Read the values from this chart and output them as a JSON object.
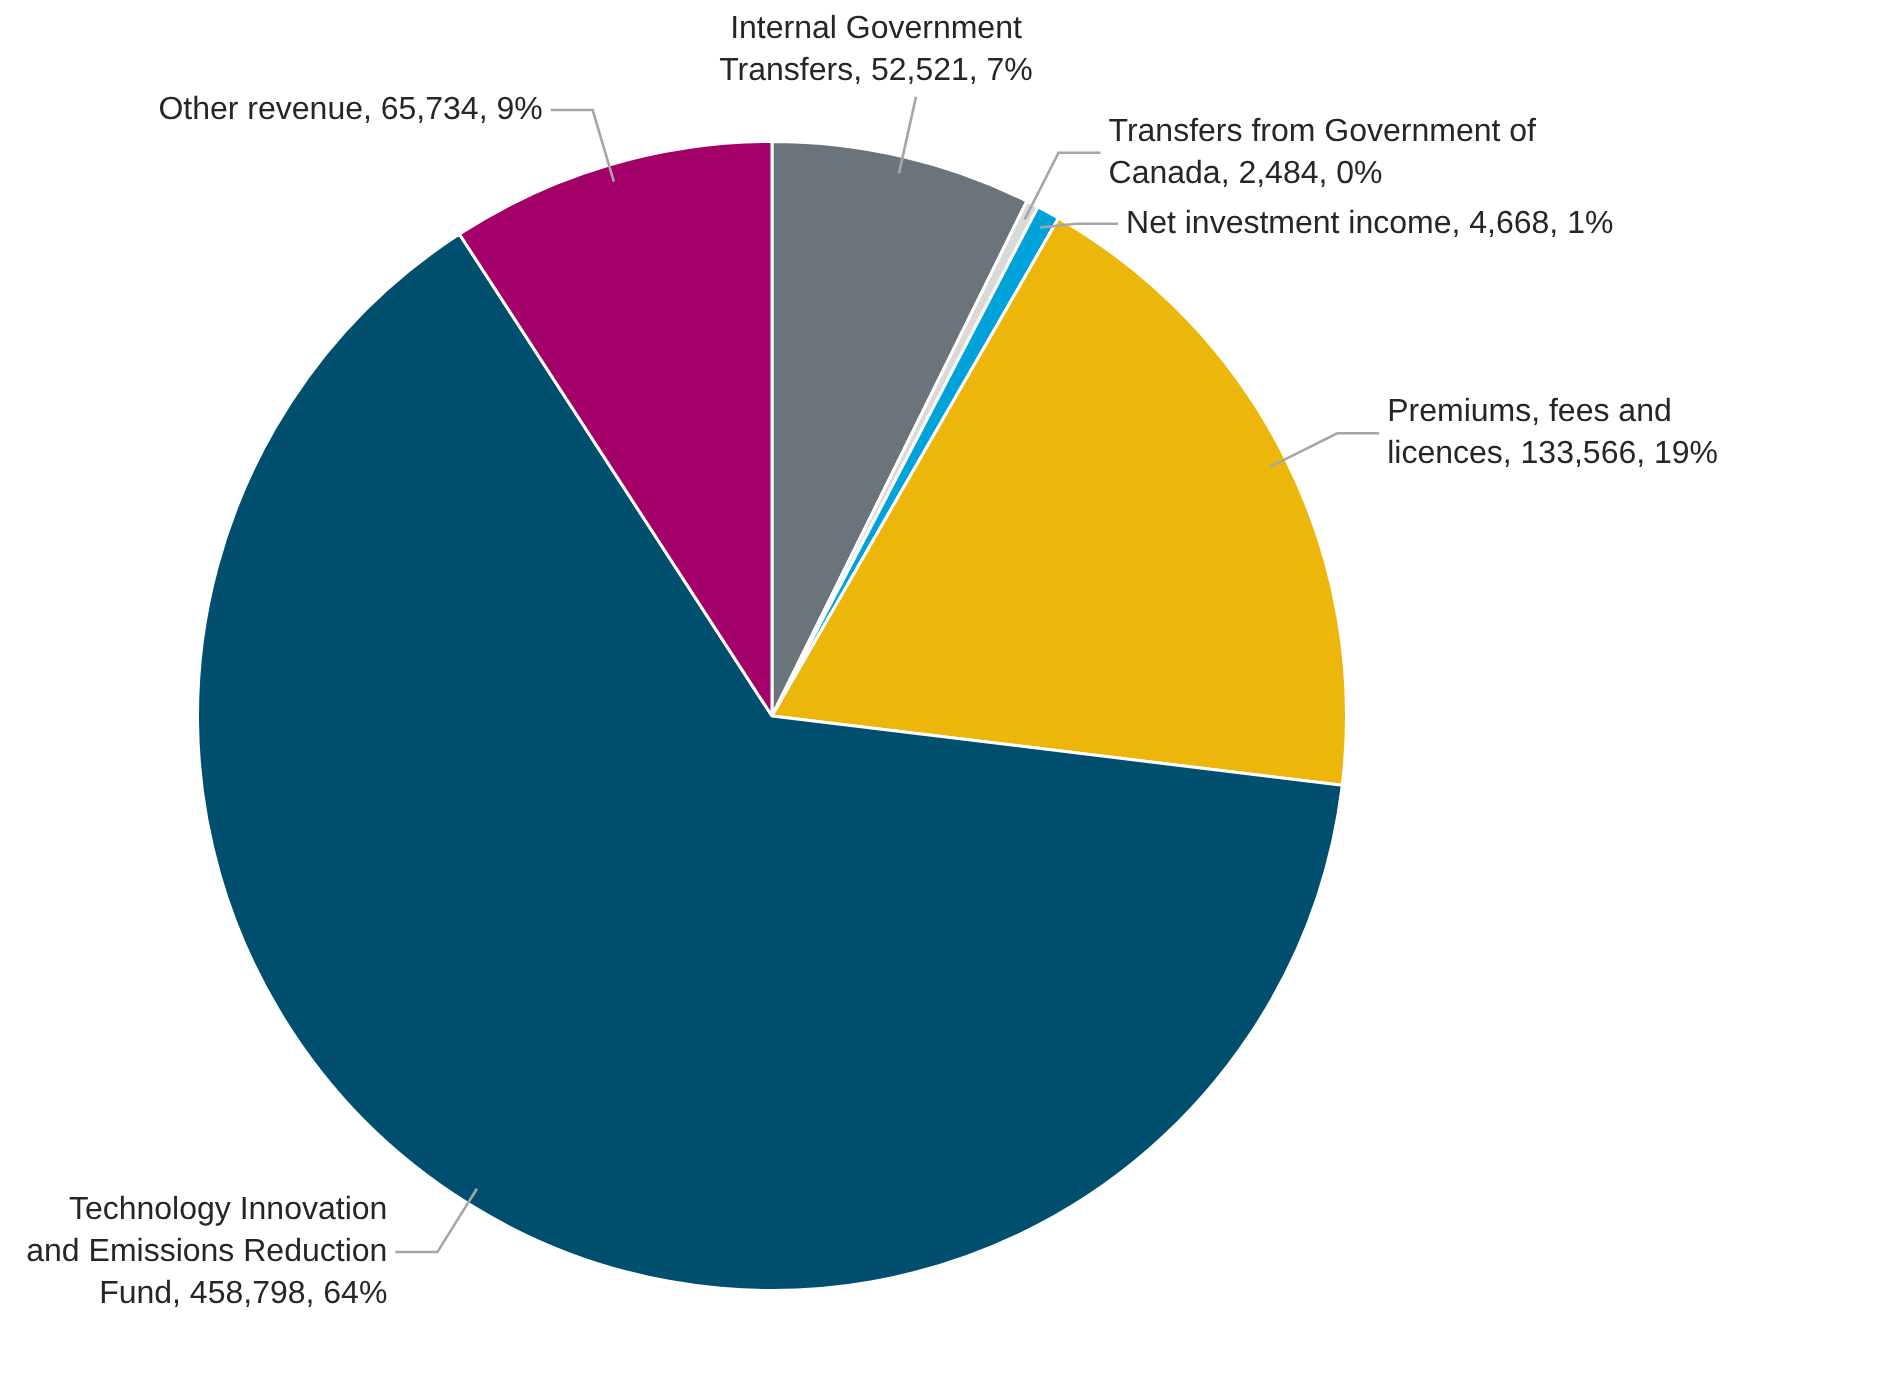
{
  "chart_data": {
    "type": "pie",
    "categories": [
      "Internal Government Transfers",
      "Transfers from Government of Canada",
      "Net investment income",
      "Premiums, fees and licences",
      "Technology Innovation and Emissions Reduction Fund",
      "Other revenue"
    ],
    "values": [
      52521,
      2484,
      4668,
      133566,
      458798,
      65734
    ],
    "value_labels": [
      "52,521, 7%",
      "2,484, 0%",
      "4,668, 1%",
      "133,566, 19%",
      "458,798, 64%",
      "65,734, 9%"
    ],
    "colors": [
      "#6b737b",
      "#d9d9d9",
      "#00a3d9",
      "#ecb70a",
      "#004f6e",
      "#a3006a"
    ],
    "legend": false
  }
}
